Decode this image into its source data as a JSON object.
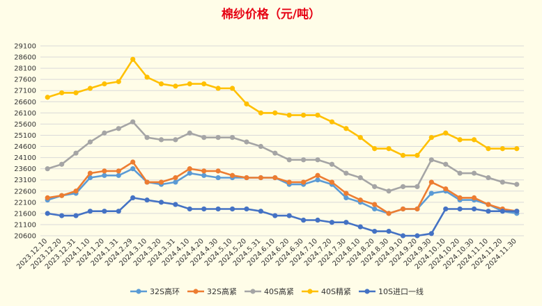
{
  "chart_data": {
    "type": "line",
    "title": "棉纱价格（元/吨）",
    "xlabel": "",
    "ylabel": "",
    "ylim": [
      20600,
      29100
    ],
    "y_ticks": [
      20600,
      21100,
      21600,
      22100,
      22600,
      23100,
      23600,
      24100,
      24600,
      25100,
      25600,
      26100,
      26600,
      27100,
      27600,
      28100,
      28600,
      29100
    ],
    "grid": "horizontal",
    "legend_position": "bottom",
    "categories": [
      "2023.12.10",
      "2023.12.20",
      "2023.12.31",
      "2024.1.10",
      "2024.1.20",
      "2024.1.31",
      "2024.2.29",
      "2024.3.10",
      "2024.3.20",
      "2024.3.31",
      "2024.4.10",
      "2024.4.20",
      "2024.4.30",
      "2024.5.10",
      "2024.5.20",
      "2024.5.31",
      "2024.6.10",
      "2024.6.20",
      "2024.6.30",
      "2024.7.10",
      "2024.7.20",
      "2024.7.30",
      "2024.8.10",
      "2024.8.20",
      "2024.8.30",
      "2024.9.10",
      "2024.9.20",
      "2024.9.30",
      "2024.10.10",
      "2024.10.20",
      "2024.10.30",
      "2024.11.10",
      "2024.11.20",
      "2024.11.30"
    ],
    "series": [
      {
        "name": "32S高环",
        "color": "#5b9bd5",
        "values": [
          22200,
          22400,
          22500,
          23200,
          23300,
          23300,
          23600,
          23000,
          22900,
          23000,
          23400,
          23300,
          23200,
          23200,
          23200,
          23200,
          23200,
          22900,
          22900,
          23100,
          22900,
          22300,
          22100,
          21800,
          21600,
          21800,
          21800,
          22500,
          22600,
          22200,
          22200,
          22000,
          21700,
          21600
        ]
      },
      {
        "name": "32S高紧",
        "color": "#ed7d31",
        "values": [
          22300,
          22400,
          22600,
          23400,
          23500,
          23500,
          23900,
          23000,
          23000,
          23200,
          23600,
          23500,
          23500,
          23300,
          23200,
          23200,
          23200,
          23000,
          23000,
          23300,
          23000,
          22500,
          22200,
          22000,
          21600,
          21800,
          21800,
          23000,
          22700,
          22300,
          22300,
          22000,
          21800,
          21700
        ]
      },
      {
        "name": "40S高紧",
        "color": "#a5a5a5",
        "values": [
          23600,
          23800,
          24300,
          24800,
          25200,
          25400,
          25700,
          25000,
          24900,
          24900,
          25200,
          25000,
          25000,
          25000,
          24800,
          24600,
          24300,
          24000,
          24000,
          24000,
          23800,
          23400,
          23200,
          22800,
          22600,
          22800,
          22800,
          24000,
          23800,
          23400,
          23400,
          23200,
          23000,
          22900
        ]
      },
      {
        "name": "40S精紧",
        "color": "#ffc000",
        "values": [
          26800,
          27000,
          27000,
          27200,
          27400,
          27500,
          28500,
          27700,
          27400,
          27300,
          27400,
          27400,
          27200,
          27200,
          26500,
          26100,
          26100,
          26000,
          26000,
          26000,
          25700,
          25400,
          25000,
          24500,
          24500,
          24200,
          24200,
          25000,
          25200,
          24900,
          24900,
          24500,
          24500,
          24500
        ]
      },
      {
        "name": "10S进口一线",
        "color": "#4472c4",
        "values": [
          21600,
          21500,
          21500,
          21700,
          21700,
          21700,
          22300,
          22200,
          22100,
          22000,
          21800,
          21800,
          21800,
          21800,
          21800,
          21700,
          21500,
          21500,
          21300,
          21300,
          21200,
          21200,
          21000,
          20800,
          20800,
          20600,
          20600,
          20700,
          21800,
          21800,
          21800,
          21700,
          21700,
          21700
        ]
      }
    ]
  }
}
